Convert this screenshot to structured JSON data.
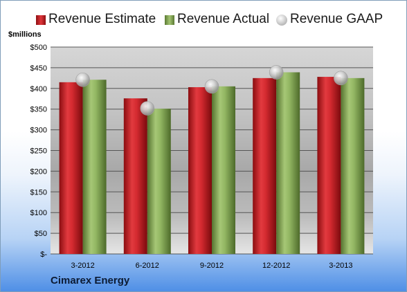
{
  "chart_data": {
    "type": "bar",
    "categories": [
      "3-2012",
      "6-2012",
      "9-2012",
      "12-2012",
      "3-2013"
    ],
    "series": [
      {
        "name": "Revenue Estimate",
        "values": [
          415,
          376,
          403,
          425,
          428
        ],
        "color": "#d8252b",
        "mark": "bar"
      },
      {
        "name": "Revenue Actual",
        "values": [
          421,
          351,
          405,
          439,
          425
        ],
        "color": "#8cb05a",
        "mark": "bar"
      },
      {
        "name": "Revenue GAAP",
        "values": [
          421,
          352,
          405,
          439,
          425
        ],
        "color": "#c0c0c0",
        "mark": "marker"
      }
    ],
    "ylabel": "$millions",
    "ylim": [
      0,
      500
    ],
    "y_ticks": [
      0,
      50,
      100,
      150,
      200,
      250,
      300,
      350,
      400,
      450,
      500
    ],
    "y_tick_labels": [
      "$-",
      "$50",
      "$100",
      "$150",
      "$200",
      "$250",
      "$300",
      "$350",
      "$400",
      "$450",
      "$500"
    ],
    "grid": true,
    "legend_position": "top"
  },
  "footer": {
    "company": "Cimarex Energy"
  }
}
